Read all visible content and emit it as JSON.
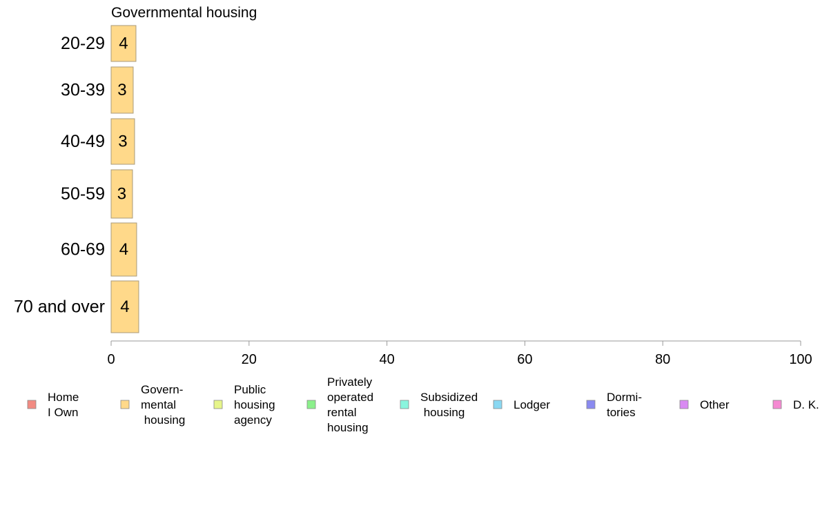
{
  "chart_data": {
    "type": "bar",
    "orientation": "horizontal",
    "title": "Governmental housing",
    "categories": [
      "20-29",
      "30-39",
      "40-49",
      "50-59",
      "60-69",
      "70 and over"
    ],
    "series": [
      {
        "name": "Govern-\nmental\n housing",
        "color": "#FFD98A",
        "values": [
          3.6,
          3.2,
          3.4,
          3.1,
          3.7,
          4.0
        ],
        "data_labels": [
          "4",
          "3",
          "3",
          "3",
          "4",
          "4"
        ]
      }
    ],
    "xlim": [
      0,
      100
    ],
    "xticks": [
      "0",
      "20",
      "40",
      "60",
      "80",
      "100"
    ],
    "grid": false,
    "legend_position": "bottom",
    "legend": [
      {
        "label": "Home\nI Own",
        "color": "#F28B82"
      },
      {
        "label": "Govern-\nmental\n housing",
        "color": "#FFD98A"
      },
      {
        "label": "Public\nhousing\nagency",
        "color": "#E6F58A"
      },
      {
        "label": "Privately\noperated\nrental\nhousing",
        "color": "#8BF08B"
      },
      {
        "label": "Subsidized\n housing",
        "color": "#8AF5DE"
      },
      {
        "label": "Lodger",
        "color": "#8AD8F2"
      },
      {
        "label": "Dormi-\ntories",
        "color": "#8A8AF0"
      },
      {
        "label": "Other",
        "color": "#D98AF2"
      },
      {
        "label": "D. K.",
        "color": "#F58AD2"
      }
    ]
  }
}
